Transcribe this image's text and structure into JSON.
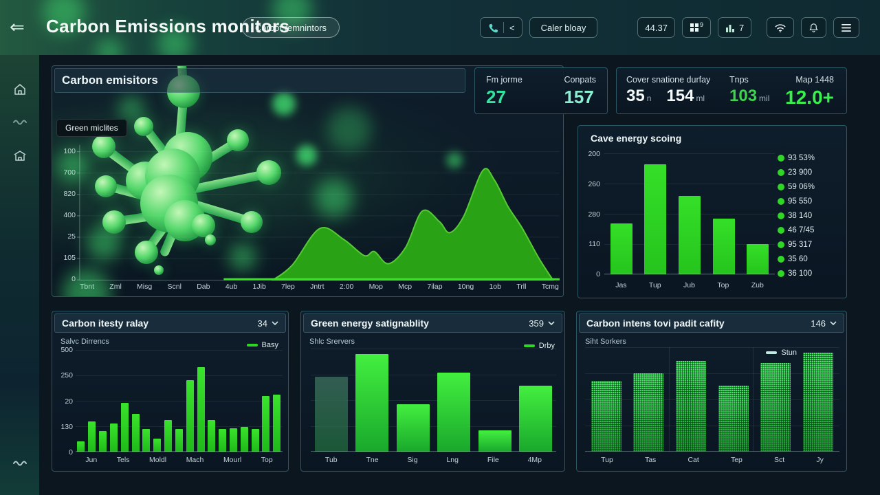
{
  "app": {
    "title": "Carbon Emissions monitors",
    "badge": "Carbot remnintors"
  },
  "header": {
    "phone_secondary": "<",
    "caller_button": "Caler bloay",
    "time_button": "44.37",
    "grid_badge": "9",
    "chart_badge": "7"
  },
  "stats_summary": {
    "left": [
      {
        "label": "Fm jorme",
        "value": "27"
      },
      {
        "label": "Conpats",
        "value": "157"
      }
    ],
    "right": {
      "group_label": "Cover snatione durfay",
      "values": [
        {
          "value": "35",
          "unit": "n"
        },
        {
          "value": "154",
          "unit": "ml"
        }
      ],
      "tnps_label": "Tnps",
      "tnps_value": "103",
      "tnps_unit": "mil",
      "map_label": "Map 1448",
      "map_value": "12.0+"
    }
  },
  "main_chart_panel": {
    "title": "Carbon emisitors",
    "tooltip": "Green miclites"
  },
  "cave_panel": {
    "title": "Cave energy scoing"
  },
  "panel_a": {
    "title": "Carbon itesty ralay",
    "dropdown": "34",
    "subtitle": "Salvc Dirrencs",
    "legend": "Basy"
  },
  "panel_b": {
    "title": "Green energy satignablity",
    "dropdown": "359",
    "subtitle": "Shlc Srervers",
    "legend": "Drby"
  },
  "panel_c": {
    "title": "Carbon intens tovi padit cafity",
    "dropdown": "146",
    "subtitle": "Siht Sorkers",
    "legend": "Stun"
  },
  "chart_data": [
    {
      "id": "main",
      "type": "area",
      "title": "Carbon emisitors",
      "value_unit": "percent_of_plot_height",
      "yticks": [
        "100",
        "700",
        "820",
        "400",
        "25",
        "105",
        "0"
      ],
      "categories": [
        "Tbnt",
        "Zml",
        "Misg",
        "Scnl",
        "Dab",
        "4ub",
        "1Jib",
        "7lep",
        "Jntrt",
        "2:00",
        "Mop",
        "Mcp",
        "7ilap",
        "10ng",
        "1ob",
        "Trll",
        "Tcmg"
      ],
      "points": [
        [
          40.3,
          0
        ],
        [
          44.3,
          11
        ],
        [
          50,
          38
        ],
        [
          55,
          30
        ],
        [
          59.3,
          18
        ],
        [
          61.4,
          21
        ],
        [
          64.3,
          12
        ],
        [
          67.9,
          24
        ],
        [
          71.4,
          51
        ],
        [
          75,
          43
        ],
        [
          77.1,
          35
        ],
        [
          80,
          47
        ],
        [
          84,
          81
        ],
        [
          86.4,
          74
        ],
        [
          89.3,
          54
        ],
        [
          92.1,
          39
        ],
        [
          95.7,
          16
        ],
        [
          98.6,
          0
        ]
      ],
      "grid": true,
      "fill_color": "#2aa216",
      "line_color": "#57c937"
    },
    {
      "id": "cave",
      "type": "bar",
      "title": "Cave energy scoing",
      "value_unit": "percent_of_plot_height",
      "yticks": [
        "200",
        "260",
        "280",
        "110",
        "0"
      ],
      "categories": [
        "Jas",
        "Tup",
        "Jub",
        "Top",
        "Zub"
      ],
      "values": [
        42,
        91,
        65,
        46,
        25
      ],
      "legend": [
        "93 53%",
        "23 900",
        "59 06%",
        "95 550",
        "38 140",
        "46 7/45",
        "95 317",
        "35 60",
        "36 100"
      ],
      "legend_position": "right",
      "grid": true,
      "bar_color": "#2fd626"
    },
    {
      "id": "intensity",
      "type": "bar",
      "title": "Carbon itesty ralay",
      "value_unit": "percent_of_plot_height",
      "yticks": [
        "500",
        "250",
        "20",
        "130",
        "0"
      ],
      "categories": [
        "Jun",
        "Tels",
        "Moldl",
        "Mach",
        "Mourl",
        "Top"
      ],
      "values": [
        10,
        30,
        20,
        28,
        48,
        37,
        22,
        13,
        31,
        22,
        70,
        83,
        31,
        22,
        23,
        24,
        22,
        55,
        56
      ],
      "legend": [
        "Basy"
      ],
      "grid": true,
      "bar_color": "#2bd41f"
    },
    {
      "id": "sustain",
      "type": "bar",
      "title": "Green energy satignablity",
      "value_unit": "percent_of_plot_height",
      "yticks": [],
      "categories": [
        "Tub",
        "Tne",
        "Sig",
        "Lng",
        "File",
        "4Mp"
      ],
      "values": [
        73,
        95,
        46,
        77,
        21,
        64
      ],
      "muted_first": true,
      "legend": [
        "Drby"
      ],
      "grid": true,
      "bar_color": "#2ed924"
    },
    {
      "id": "capacity",
      "type": "bar",
      "title": "Carbon intens tovi padit cafity",
      "value_unit": "percent_of_plot_height",
      "yticks": [],
      "categories": [
        "Tup",
        "Tas",
        "Cat",
        "Tep",
        "Sct",
        "Jy"
      ],
      "values": [
        68,
        75,
        87,
        63,
        85,
        95
      ],
      "legend": [
        "Stun"
      ],
      "grid": true,
      "bar_color": "#2fbf45",
      "bar_texture": "dotted-grid"
    }
  ]
}
